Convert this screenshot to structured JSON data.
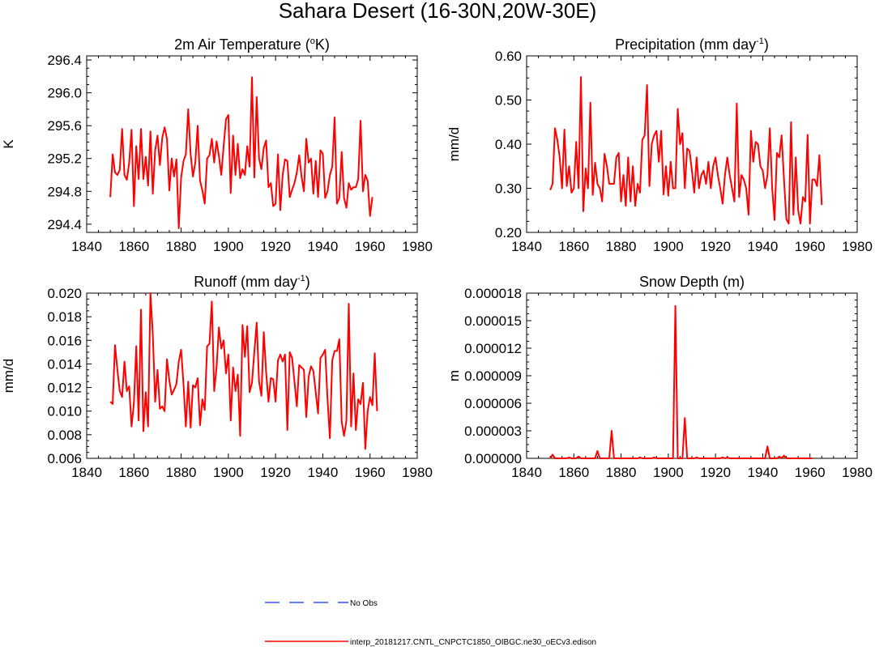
{
  "figure": {
    "title": "Sahara Desert (16-30N,20W-30E)"
  },
  "colors": {
    "model": "#ff0000",
    "obs": "#3355ee",
    "axis": "#000000"
  },
  "legend": {
    "entries": [
      {
        "label": "No Obs",
        "style": "dashed",
        "color": "#3355ee"
      },
      {
        "label": "interp_20181217.CNTL_CNPCTC1850_OIBGC.ne30_oECv3.edison",
        "style": "solid",
        "color": "#ff0000"
      }
    ]
  },
  "chart_data": [
    {
      "type": "line",
      "title": "2m Air Temperature (",
      "title_sup": "o",
      "title_end": "K)",
      "ylabel": "K",
      "xlim": [
        1840,
        1980
      ],
      "xticks": [
        "1840",
        "1860",
        "1880",
        "1900",
        "1920",
        "1940",
        "1960",
        "1980"
      ],
      "ylim": [
        294.3,
        296.45
      ],
      "yticks": [
        294.4,
        294.8,
        295.2,
        295.6,
        296.0,
        296.4
      ],
      "ytick_labels": [
        "294.4",
        "294.8",
        "295.2",
        "295.6",
        "296.0",
        "296.4"
      ],
      "x_start": 1850,
      "series": [
        {
          "name": "interp_20181217.CNTL_CNPCTC1850_OIBGC.ne30_oECv3.edison",
          "values": [
            294.73,
            295.25,
            295.03,
            295.0,
            295.06,
            295.56,
            295.0,
            294.94,
            295.15,
            295.55,
            294.62,
            295.35,
            294.95,
            295.56,
            294.95,
            295.22,
            294.87,
            295.53,
            294.77,
            295.3,
            295.48,
            295.12,
            295.45,
            295.58,
            295.44,
            294.81,
            295.2,
            294.98,
            295.19,
            294.35,
            294.97,
            295.17,
            295.25,
            295.8,
            295.26,
            294.98,
            295.15,
            295.6,
            294.93,
            294.81,
            294.65,
            295.2,
            295.24,
            295.44,
            295.15,
            295.41,
            295.23,
            295.0,
            295.35,
            295.68,
            295.73,
            294.78,
            295.48,
            295.0,
            295.38,
            294.96,
            295.07,
            295.0,
            295.35,
            295.1,
            296.19,
            294.97,
            295.95,
            295.2,
            295.07,
            295.33,
            295.42,
            294.85,
            294.9,
            294.62,
            294.65,
            295.25,
            294.57,
            295.0,
            295.19,
            295.17,
            294.73,
            294.82,
            294.9,
            295.03,
            295.24,
            294.98,
            294.8,
            295.44,
            295.15,
            295.2,
            294.77,
            295.17,
            294.73,
            295.3,
            295.26,
            294.72,
            294.8,
            295.0,
            295.1,
            295.7,
            294.65,
            294.72,
            295.28,
            294.72,
            294.6,
            294.9,
            294.82,
            294.85,
            294.85,
            294.95,
            295.66,
            294.8,
            295.0,
            294.93,
            294.5,
            294.73
          ]
        }
      ]
    },
    {
      "type": "line",
      "title": "Precipitation (mm day",
      "title_sup": "-1",
      "title_end": ")",
      "ylabel": "mm/d",
      "xlim": [
        1840,
        1980
      ],
      "xticks": [
        "1840",
        "1860",
        "1880",
        "1900",
        "1920",
        "1940",
        "1960",
        "1980"
      ],
      "ylim": [
        0.2,
        0.6
      ],
      "yticks": [
        0.2,
        0.3,
        0.4,
        0.5,
        0.6
      ],
      "ytick_labels": [
        "0.20",
        "0.30",
        "0.40",
        "0.50",
        "0.60"
      ],
      "x_start": 1850,
      "series": [
        {
          "name": "interp_20181217.CNTL_CNPCTC1850_OIBGC.ne30_oECv3.edison",
          "values": [
            0.296,
            0.31,
            0.436,
            0.41,
            0.37,
            0.3,
            0.433,
            0.305,
            0.35,
            0.29,
            0.3,
            0.405,
            0.3,
            0.552,
            0.248,
            0.345,
            0.3,
            0.494,
            0.285,
            0.358,
            0.31,
            0.3,
            0.27,
            0.378,
            0.35,
            0.31,
            0.31,
            0.31,
            0.37,
            0.38,
            0.27,
            0.33,
            0.26,
            0.37,
            0.27,
            0.35,
            0.26,
            0.31,
            0.29,
            0.41,
            0.42,
            0.534,
            0.305,
            0.4,
            0.42,
            0.43,
            0.36,
            0.43,
            0.286,
            0.35,
            0.283,
            0.36,
            0.3,
            0.3,
            0.48,
            0.4,
            0.425,
            0.3,
            0.39,
            0.385,
            0.34,
            0.29,
            0.37,
            0.3,
            0.33,
            0.34,
            0.31,
            0.36,
            0.3,
            0.35,
            0.37,
            0.33,
            0.3,
            0.265,
            0.33,
            0.37,
            0.33,
            0.3,
            0.27,
            0.492,
            0.28,
            0.33,
            0.32,
            0.3,
            0.24,
            0.43,
            0.36,
            0.405,
            0.4,
            0.35,
            0.34,
            0.3,
            0.33,
            0.436,
            0.3,
            0.228,
            0.38,
            0.37,
            0.42,
            0.32,
            0.23,
            0.22,
            0.45,
            0.24,
            0.37,
            0.25,
            0.22,
            0.28,
            0.27,
            0.421,
            0.22,
            0.32,
            0.32,
            0.305,
            0.375,
            0.262
          ]
        }
      ]
    },
    {
      "type": "line",
      "title": "Runoff (mm day",
      "title_sup": "-1",
      "title_end": ")",
      "ylabel": "mm/d",
      "xlim": [
        1840,
        1980
      ],
      "xticks": [
        "1840",
        "1860",
        "1880",
        "1900",
        "1920",
        "1940",
        "1960",
        "1980"
      ],
      "ylim": [
        0.006,
        0.02
      ],
      "yticks": [
        0.006,
        0.008,
        0.01,
        0.012,
        0.014,
        0.016,
        0.018,
        0.02
      ],
      "ytick_labels": [
        "0.006",
        "0.008",
        "0.010",
        "0.012",
        "0.014",
        "0.016",
        "0.018",
        "0.020"
      ],
      "x_start": 1850,
      "series": [
        {
          "name": "interp_20181217.CNTL_CNPCTC1850_OIBGC.ne30_oECv3.edison",
          "values": [
            0.0108,
            0.0106,
            0.0156,
            0.0135,
            0.0117,
            0.0112,
            0.0142,
            0.0117,
            0.0121,
            0.0087,
            0.0107,
            0.0155,
            0.0092,
            0.0186,
            0.0083,
            0.0116,
            0.0087,
            0.02,
            0.0165,
            0.0108,
            0.0135,
            0.0102,
            0.0104,
            0.01,
            0.0144,
            0.0126,
            0.0114,
            0.0118,
            0.0123,
            0.0142,
            0.0152,
            0.0123,
            0.0087,
            0.0125,
            0.0086,
            0.0122,
            0.012,
            0.0128,
            0.0088,
            0.011,
            0.0101,
            0.0155,
            0.0157,
            0.0193,
            0.0117,
            0.0137,
            0.0171,
            0.0153,
            0.016,
            0.0132,
            0.0148,
            0.0092,
            0.0137,
            0.0117,
            0.0131,
            0.0079,
            0.0173,
            0.0146,
            0.0172,
            0.0116,
            0.0124,
            0.015,
            0.0175,
            0.0125,
            0.0113,
            0.0167,
            0.0133,
            0.0108,
            0.0128,
            0.0127,
            0.0108,
            0.0143,
            0.0148,
            0.0142,
            0.0148,
            0.0084,
            0.015,
            0.0145,
            0.0125,
            0.0104,
            0.0139,
            0.0137,
            0.0135,
            0.0095,
            0.0129,
            0.0138,
            0.0134,
            0.0116,
            0.0098,
            0.0145,
            0.0148,
            0.0152,
            0.011,
            0.0077,
            0.0143,
            0.0151,
            0.0151,
            0.0161,
            0.0091,
            0.0079,
            0.0092,
            0.0191,
            0.0087,
            0.0132,
            0.0084,
            0.011,
            0.0106,
            0.0124,
            0.0068,
            0.01,
            0.0112,
            0.0105,
            0.0149,
            0.01
          ]
        }
      ]
    },
    {
      "type": "line",
      "title": "Snow Depth (m)",
      "title_sup": "",
      "title_end": "",
      "ylabel": "m",
      "xlim": [
        1840,
        1980
      ],
      "xticks": [
        "1840",
        "1860",
        "1880",
        "1900",
        "1920",
        "1940",
        "1960",
        "1980"
      ],
      "ylim": [
        0,
        1.8e-05
      ],
      "yticks": [
        0,
        3e-06,
        6e-06,
        9e-06,
        1.2e-05,
        1.5e-05,
        1.8e-05
      ],
      "ytick_labels": [
        "0.000000",
        "0.000003",
        "0.000006",
        "0.000009",
        "0.000012",
        "0.000015",
        "0.000018"
      ],
      "x_start": 1850,
      "series": [
        {
          "name": "interp_20181217.CNTL_CNPCTC1850_OIBGC.ne30_oECv3.edison",
          "values": [
            0,
            4e-07,
            0,
            0,
            0,
            0,
            0,
            0,
            1e-07,
            0,
            0,
            0,
            2e-07,
            0,
            0,
            0,
            0,
            0,
            0,
            0,
            8e-07,
            0,
            0,
            0,
            0,
            0,
            3e-06,
            0,
            0,
            0,
            0,
            0,
            0,
            0,
            0,
            0,
            0,
            0,
            1e-07,
            0,
            0,
            0,
            0,
            0,
            1e-07,
            0,
            0,
            0,
            0,
            0,
            0,
            0,
            0,
            1.66e-05,
            0,
            0,
            0,
            4.4e-06,
            0,
            0,
            0,
            0,
            1e-07,
            0,
            0,
            0,
            0,
            0,
            0,
            0,
            0,
            0,
            0,
            1e-07,
            0,
            1e-07,
            0,
            0,
            0,
            0,
            0,
            0,
            0,
            0,
            0,
            0,
            0,
            0,
            0,
            0,
            0,
            0,
            1.3e-06,
            0,
            0,
            0,
            0,
            2e-07,
            0,
            3e-07,
            0,
            0,
            0,
            0,
            0,
            0,
            0,
            0,
            0,
            0,
            0,
            0
          ]
        }
      ]
    }
  ]
}
